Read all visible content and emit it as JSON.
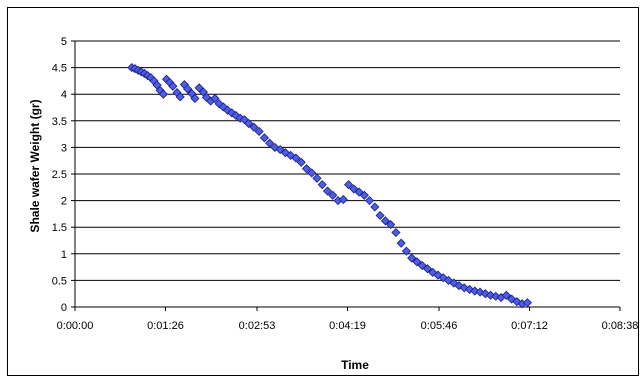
{
  "chart_data": {
    "type": "scatter",
    "title": "",
    "xlabel": "Time",
    "ylabel": "Shale wafer Weight (gr)",
    "x_unit": "h:mm:ss",
    "xlim": [
      "0:00:00",
      "0:08:38"
    ],
    "ylim": [
      0,
      5
    ],
    "x_tick_labels": [
      "0:00:00",
      "0:01:26",
      "0:02:53",
      "0:04:19",
      "0:05:46",
      "0:07:12",
      "0:08:38"
    ],
    "y_tick_labels": [
      "0",
      "0.5",
      "1",
      "1.5",
      "2",
      "2.5",
      "3",
      "3.5",
      "4",
      "4.5",
      "5"
    ],
    "grid": "horizontal",
    "legend": "none",
    "marker": "diamond",
    "colors": {
      "marker_fill": "#4d5fe0",
      "marker_edge": "#1a1a8c",
      "gridline": "#000000"
    },
    "series": [
      {
        "points": [
          [
            "0:00:54",
            4.5
          ],
          [
            "0:00:57",
            4.48
          ],
          [
            "0:01:00",
            4.45
          ],
          [
            "0:01:03",
            4.42
          ],
          [
            "0:01:06",
            4.39
          ],
          [
            "0:01:09",
            4.35
          ],
          [
            "0:01:12",
            4.31
          ],
          [
            "0:01:15",
            4.25
          ],
          [
            "0:01:18",
            4.17
          ],
          [
            "0:01:21",
            4.07
          ],
          [
            "0:01:24",
            4.0
          ],
          [
            "0:01:27",
            4.28
          ],
          [
            "0:01:30",
            4.22
          ],
          [
            "0:01:33",
            4.15
          ],
          [
            "0:01:37",
            4.03
          ],
          [
            "0:01:40",
            3.95
          ],
          [
            "0:01:44",
            4.18
          ],
          [
            "0:01:47",
            4.1
          ],
          [
            "0:01:51",
            4.01
          ],
          [
            "0:01:54",
            3.92
          ],
          [
            "0:01:58",
            4.12
          ],
          [
            "0:02:02",
            4.04
          ],
          [
            "0:02:05",
            3.94
          ],
          [
            "0:02:09",
            3.87
          ],
          [
            "0:02:13",
            3.92
          ],
          [
            "0:02:17",
            3.82
          ],
          [
            "0:02:21",
            3.76
          ],
          [
            "0:02:25",
            3.7
          ],
          [
            "0:02:29",
            3.65
          ],
          [
            "0:02:33",
            3.6
          ],
          [
            "0:02:37",
            3.55
          ],
          [
            "0:02:41",
            3.52
          ],
          [
            "0:02:45",
            3.45
          ],
          [
            "0:02:50",
            3.38
          ],
          [
            "0:02:55",
            3.3
          ],
          [
            "0:03:00",
            3.18
          ],
          [
            "0:03:05",
            3.08
          ],
          [
            "0:03:10",
            3.0
          ],
          [
            "0:03:15",
            2.96
          ],
          [
            "0:03:20",
            2.9
          ],
          [
            "0:03:25",
            2.85
          ],
          [
            "0:03:30",
            2.8
          ],
          [
            "0:03:35",
            2.72
          ],
          [
            "0:03:40",
            2.6
          ],
          [
            "0:03:45",
            2.52
          ],
          [
            "0:03:50",
            2.42
          ],
          [
            "0:03:55",
            2.3
          ],
          [
            "0:04:00",
            2.18
          ],
          [
            "0:04:05",
            2.1
          ],
          [
            "0:04:10",
            2.0
          ],
          [
            "0:04:15",
            2.02
          ],
          [
            "0:04:20",
            2.3
          ],
          [
            "0:04:25",
            2.22
          ],
          [
            "0:04:30",
            2.16
          ],
          [
            "0:04:35",
            2.1
          ],
          [
            "0:04:40",
            2.0
          ],
          [
            "0:04:45",
            1.88
          ],
          [
            "0:04:50",
            1.72
          ],
          [
            "0:04:55",
            1.62
          ],
          [
            "0:05:00",
            1.55
          ],
          [
            "0:05:05",
            1.4
          ],
          [
            "0:05:10",
            1.2
          ],
          [
            "0:05:15",
            1.05
          ],
          [
            "0:05:20",
            0.92
          ],
          [
            "0:05:25",
            0.85
          ],
          [
            "0:05:30",
            0.78
          ],
          [
            "0:05:35",
            0.72
          ],
          [
            "0:05:40",
            0.65
          ],
          [
            "0:05:45",
            0.6
          ],
          [
            "0:05:50",
            0.55
          ],
          [
            "0:05:55",
            0.5
          ],
          [
            "0:06:00",
            0.45
          ],
          [
            "0:06:05",
            0.4
          ],
          [
            "0:06:10",
            0.36
          ],
          [
            "0:06:15",
            0.33
          ],
          [
            "0:06:20",
            0.3
          ],
          [
            "0:06:25",
            0.28
          ],
          [
            "0:06:30",
            0.25
          ],
          [
            "0:06:35",
            0.22
          ],
          [
            "0:06:40",
            0.2
          ],
          [
            "0:06:45",
            0.18
          ],
          [
            "0:06:50",
            0.22
          ],
          [
            "0:06:55",
            0.15
          ],
          [
            "0:07:00",
            0.1
          ],
          [
            "0:07:05",
            0.06
          ],
          [
            "0:07:10",
            0.08
          ]
        ]
      }
    ]
  }
}
